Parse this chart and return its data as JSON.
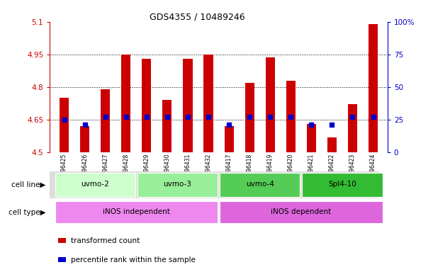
{
  "title": "GDS4355 / 10489246",
  "samples": [
    "GSM796425",
    "GSM796426",
    "GSM796427",
    "GSM796428",
    "GSM796429",
    "GSM796430",
    "GSM796431",
    "GSM796432",
    "GSM796417",
    "GSM796418",
    "GSM796419",
    "GSM796420",
    "GSM796421",
    "GSM796422",
    "GSM796423",
    "GSM796424"
  ],
  "bar_values": [
    4.75,
    4.62,
    4.79,
    4.95,
    4.93,
    4.74,
    4.93,
    4.95,
    4.62,
    4.82,
    4.935,
    4.83,
    4.63,
    4.57,
    4.72,
    5.09
  ],
  "ymin": 4.5,
  "ymax": 5.1,
  "yticks": [
    4.5,
    4.65,
    4.8,
    4.95,
    5.1
  ],
  "ytick_labels": [
    "4.5",
    "4.65",
    "4.8",
    "4.95",
    "5.1"
  ],
  "right_yticks": [
    0,
    25,
    50,
    75,
    100
  ],
  "right_ytick_labels": [
    "0",
    "25",
    "50",
    "75",
    "100%"
  ],
  "bar_color": "#cc0000",
  "dot_color": "#0000cc",
  "bar_bottom": 4.5,
  "dot_percentile": [
    25,
    21,
    27,
    27,
    27,
    27,
    27,
    27,
    21,
    27,
    27,
    27,
    21,
    21,
    27,
    27
  ],
  "cell_line_labels": [
    "uvmo-2",
    "uvmo-3",
    "uvmo-4",
    "Spl4-10"
  ],
  "cell_line_starts": [
    0,
    4,
    8,
    12
  ],
  "cell_line_ends": [
    4,
    8,
    12,
    16
  ],
  "cell_line_colors": [
    "#ccffcc",
    "#99ee99",
    "#55cc55",
    "#33bb33"
  ],
  "cell_type_labels": [
    "iNOS independent",
    "iNOS dependent"
  ],
  "cell_type_starts": [
    0,
    8
  ],
  "cell_type_ends": [
    8,
    16
  ],
  "cell_type_colors": [
    "#ee88ee",
    "#dd66dd"
  ],
  "legend_red_label": "transformed count",
  "legend_blue_label": "percentile rank within the sample",
  "cell_line_row_label": "cell line",
  "cell_type_row_label": "cell type"
}
